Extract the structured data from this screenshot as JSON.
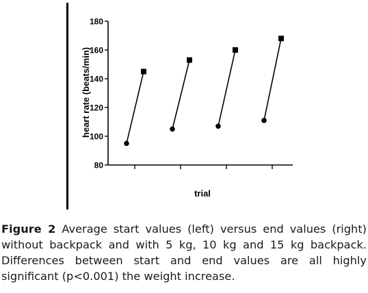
{
  "chart_data": {
    "type": "scatter",
    "title": "",
    "xlabel": "trial",
    "ylabel": "heart rate (beats/min)",
    "ylim": [
      80,
      180
    ],
    "yticks": [
      80,
      100,
      120,
      140,
      160,
      180
    ],
    "grid": false,
    "legend": "none",
    "groups": [
      {
        "start": 95,
        "end": 145
      },
      {
        "start": 105,
        "end": 153
      },
      {
        "start": 107,
        "end": 160
      },
      {
        "start": 111,
        "end": 168
      }
    ],
    "markers": {
      "start": "circle",
      "end": "square"
    },
    "color": "#000000"
  },
  "caption": {
    "label": "Figure 2",
    "text": " Average start values (left) versus end values (right) without backpack and with 5 kg, 10 kg and 15 kg backpack. Differences between start and end values are all highly significant (p<0.001) the weight increase."
  }
}
